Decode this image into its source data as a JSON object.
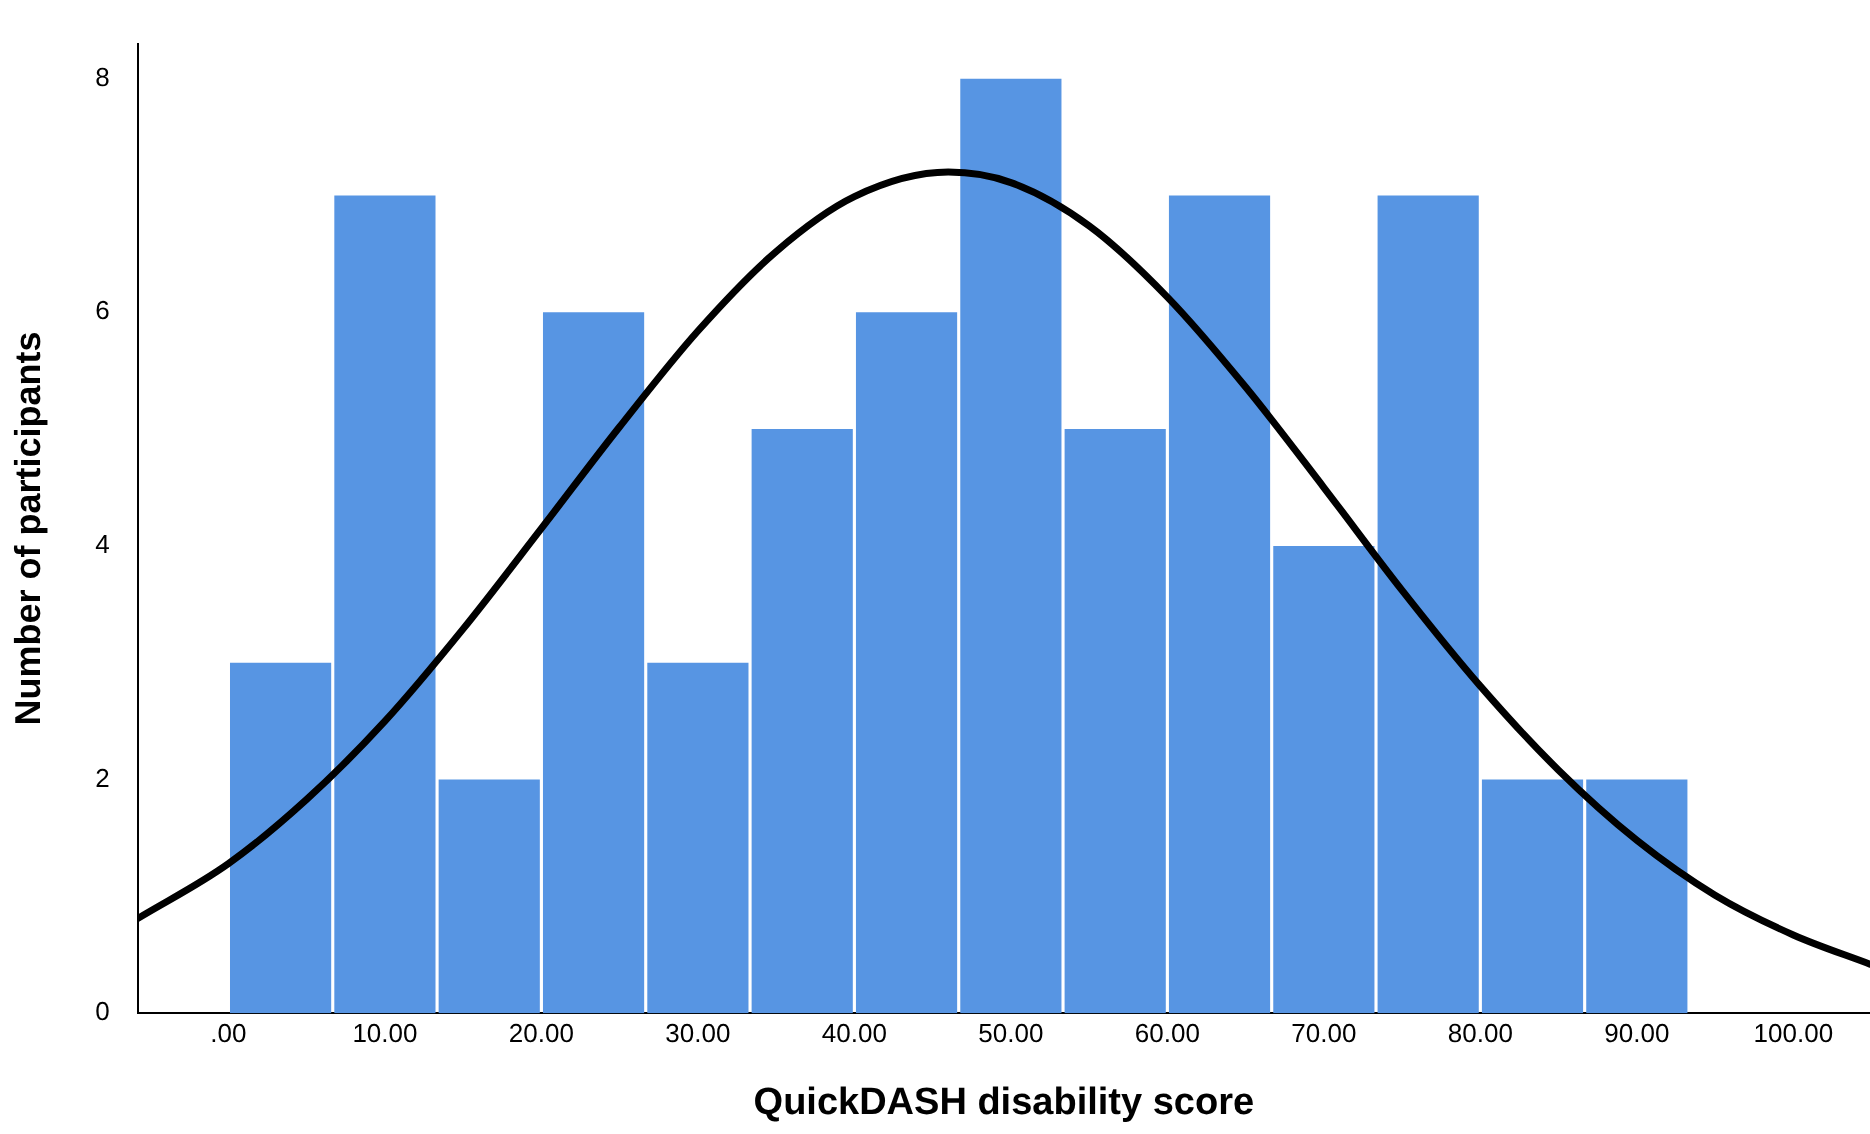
{
  "chart_data": {
    "type": "histogram",
    "xlabel": "QuickDASH disability score",
    "ylabel": "Number of participants",
    "bins": [
      0,
      6.667,
      13.333,
      20,
      26.667,
      33.333,
      40,
      46.667,
      53.333,
      60,
      66.667,
      73.333,
      80,
      86.667,
      93.333
    ],
    "values": [
      3,
      7,
      2,
      6,
      3,
      5,
      6,
      8,
      5,
      7,
      4,
      7,
      2,
      2
    ],
    "color": "#5795e3",
    "series": [
      {
        "type": "line",
        "color": "#000000",
        "x": [
          -5.8,
          0,
          5,
          10,
          15,
          20,
          25,
          30,
          35,
          40,
          46,
          50,
          55,
          60,
          65,
          70,
          75,
          80,
          85,
          90,
          95,
          100,
          104.9
        ],
        "values": [
          0.81,
          1.28,
          1.83,
          2.5,
          3.29,
          4.15,
          5.02,
          5.84,
          6.52,
          6.99,
          7.2,
          7.11,
          6.74,
          6.13,
          5.36,
          4.5,
          3.62,
          2.8,
          2.08,
          1.48,
          1.01,
          0.67,
          0.42
        ]
      }
    ],
    "xlim": [
      -5.8,
      104.9
    ],
    "xticks": [
      {
        "value": 0,
        "label": ".00"
      },
      {
        "value": 10,
        "label": "10.00"
      },
      {
        "value": 20,
        "label": "20.00"
      },
      {
        "value": 30,
        "label": "30.00"
      },
      {
        "value": 40,
        "label": "40.00"
      },
      {
        "value": 50,
        "label": "50.00"
      },
      {
        "value": 60,
        "label": "60.00"
      },
      {
        "value": 70,
        "label": "70.00"
      },
      {
        "value": 80,
        "label": "80.00"
      },
      {
        "value": 90,
        "label": "90.00"
      },
      {
        "value": 100,
        "label": "100.00"
      }
    ],
    "ylim": [
      0,
      8.3
    ],
    "yticks": [
      0,
      2,
      4,
      6,
      8
    ],
    "grid": false,
    "legend": false,
    "marker": "none",
    "line_style": "solid"
  }
}
